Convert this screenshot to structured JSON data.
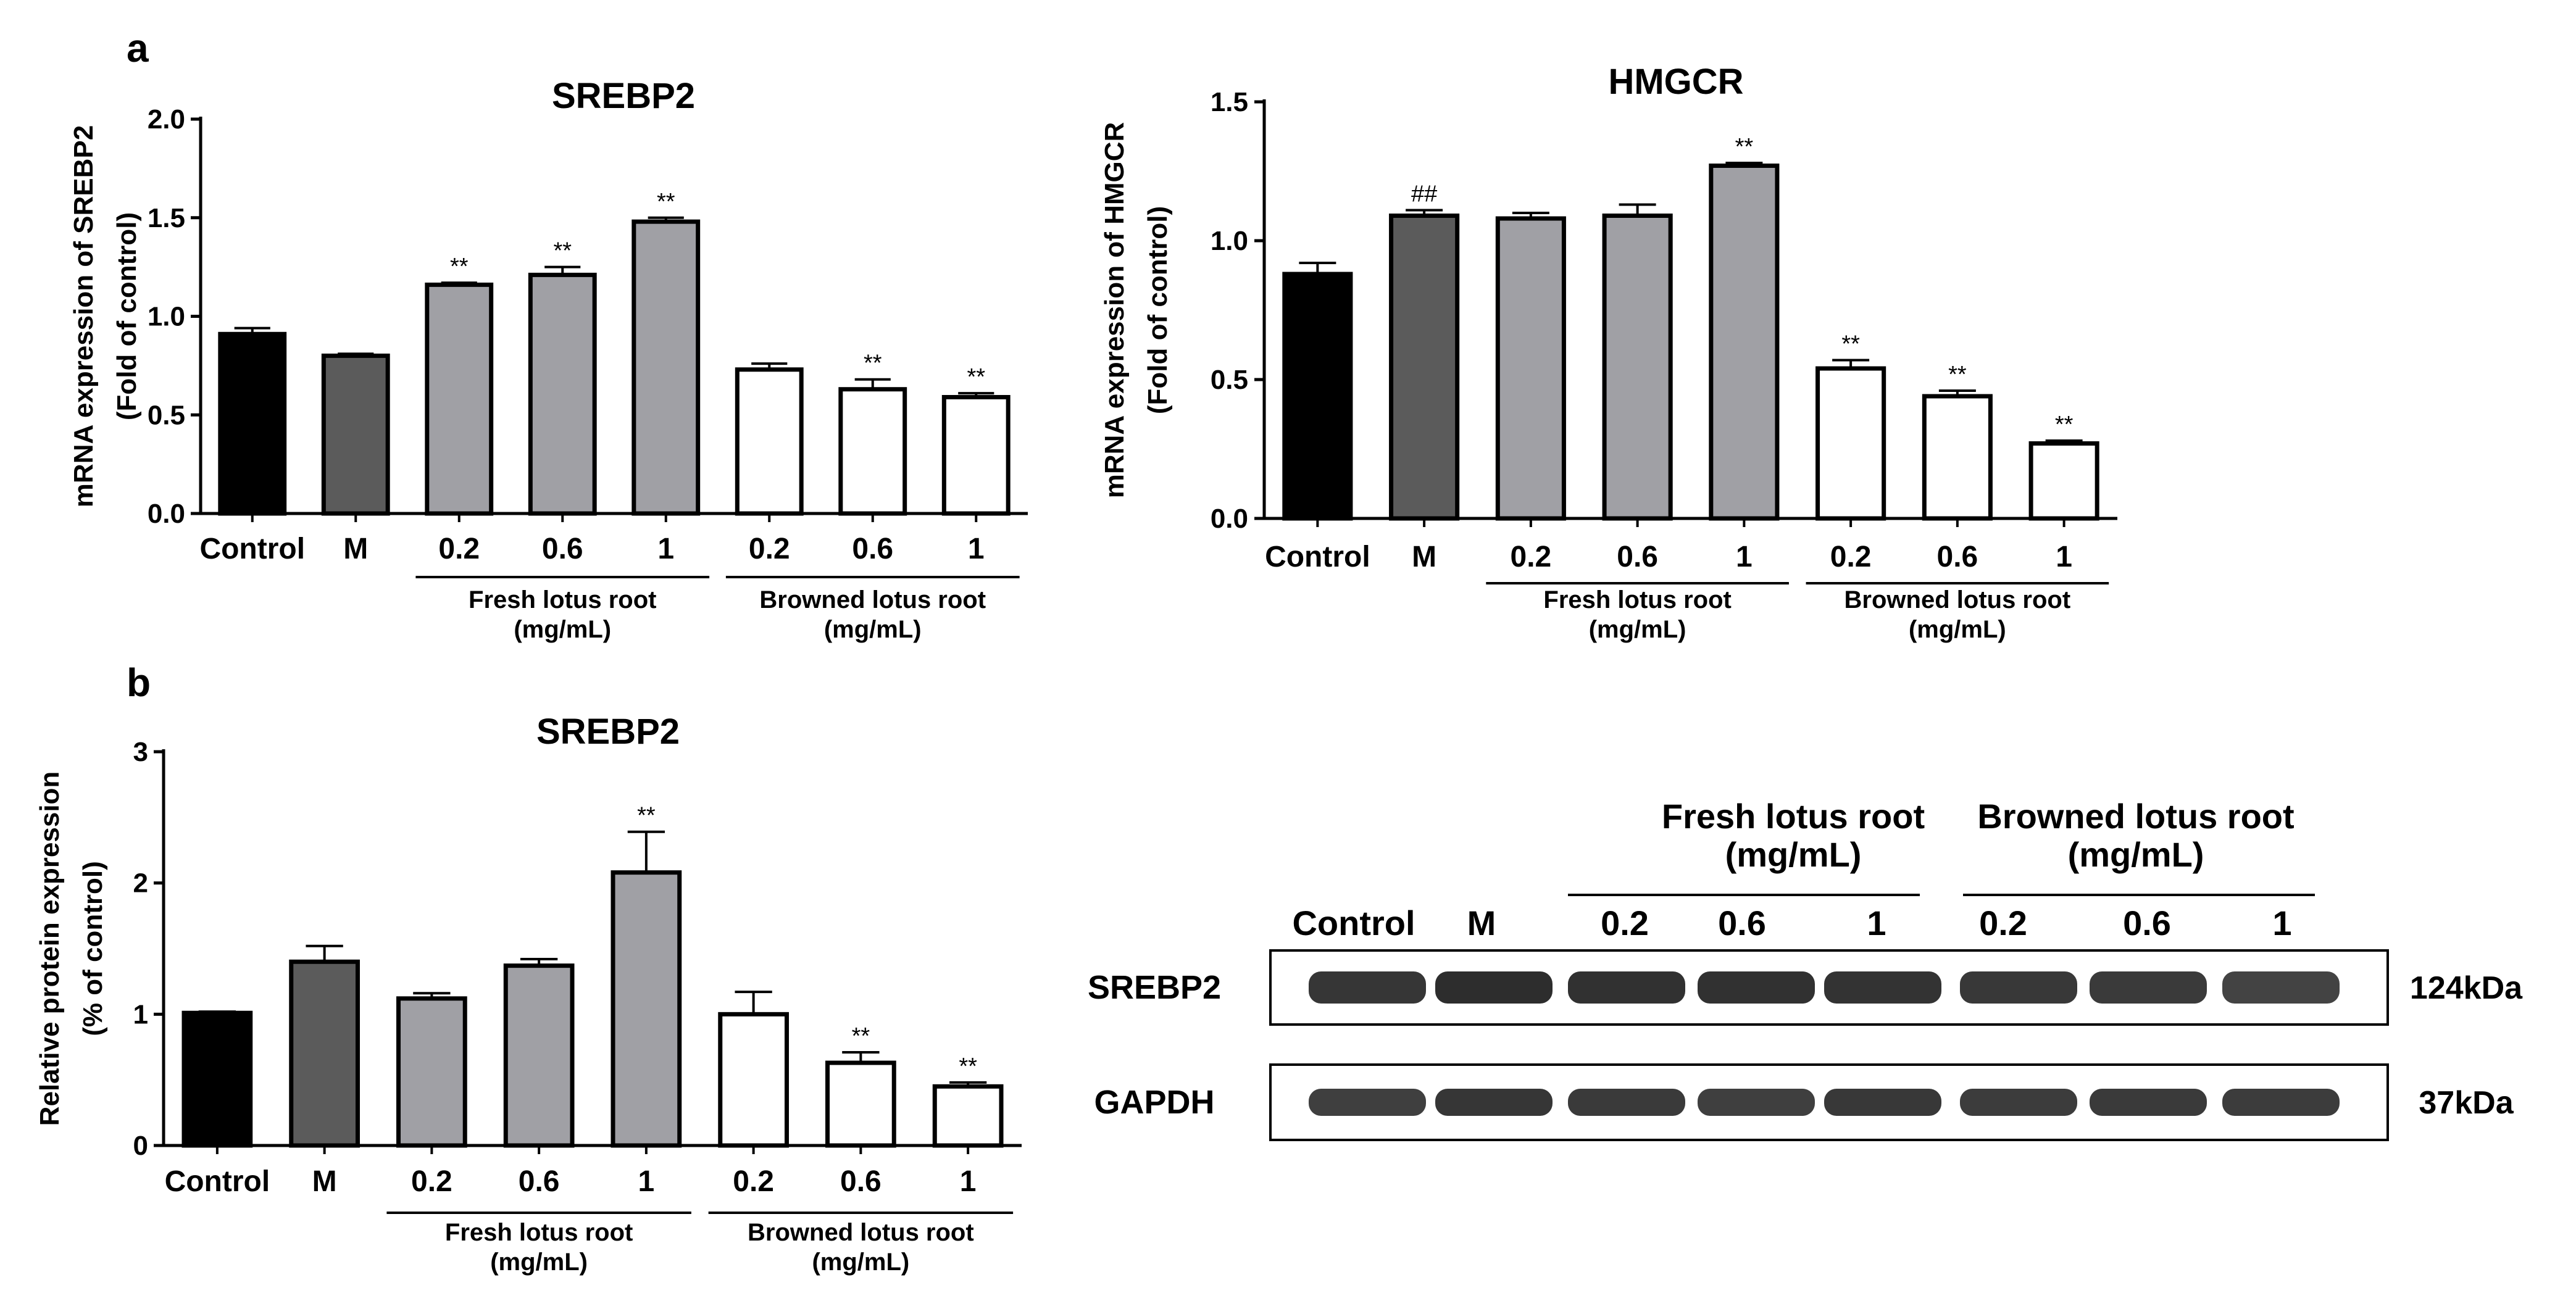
{
  "panel_labels": {
    "a": "a",
    "b": "b"
  },
  "colors": {
    "control": "#000000",
    "model": "#5b5b5b",
    "fresh": "#a0a0a5",
    "browned": "#ffffff",
    "outline": "#000000"
  },
  "chart_data": [
    {
      "id": "srebp2-mrna",
      "type": "bar",
      "title": "SREBP2",
      "ylabel": [
        "mRNA expression of SREBP2",
        "(Fold of control)"
      ],
      "ylim": [
        0,
        2.0
      ],
      "yticks": [
        "0.0",
        "0.5",
        "1.0",
        "1.5",
        "2.0"
      ],
      "ytick_values": [
        0,
        0.5,
        1.0,
        1.5,
        2.0
      ],
      "categories": [
        "Control",
        "M",
        "0.2",
        "0.6",
        "1",
        "0.2",
        "0.6",
        "1"
      ],
      "values": [
        0.91,
        0.8,
        1.16,
        1.21,
        1.48,
        0.73,
        0.63,
        0.59
      ],
      "errors": [
        0.03,
        0.01,
        0.01,
        0.04,
        0.02,
        0.03,
        0.05,
        0.02
      ],
      "annotations": [
        "",
        "",
        "**",
        "**",
        "**",
        "",
        "**",
        "**"
      ],
      "fill_keys": [
        "control",
        "model",
        "fresh",
        "fresh",
        "fresh",
        "browned",
        "browned",
        "browned"
      ],
      "groups": [
        {
          "label": [
            "Fresh lotus root",
            "(mg/mL)"
          ],
          "from": 2,
          "to": 4
        },
        {
          "label": [
            "Browned lotus root",
            "(mg/mL)"
          ],
          "from": 5,
          "to": 7
        }
      ]
    },
    {
      "id": "hmgcr-mrna",
      "type": "bar",
      "title": "HMGCR",
      "ylabel": [
        "mRNA expression of HMGCR",
        "(Fold of control)"
      ],
      "ylim": [
        0,
        1.5
      ],
      "yticks": [
        "0.0",
        "0.5",
        "1.0",
        "1.5"
      ],
      "ytick_values": [
        0,
        0.5,
        1.0,
        1.5
      ],
      "categories": [
        "Control",
        "M",
        "0.2",
        "0.6",
        "1",
        "0.2",
        "0.6",
        "1"
      ],
      "values": [
        0.88,
        1.09,
        1.08,
        1.09,
        1.27,
        0.54,
        0.44,
        0.27
      ],
      "errors": [
        0.04,
        0.02,
        0.02,
        0.04,
        0.01,
        0.03,
        0.02,
        0.01
      ],
      "annotations": [
        "",
        "##",
        "",
        "",
        "**",
        "**",
        "**",
        "**"
      ],
      "fill_keys": [
        "control",
        "model",
        "fresh",
        "fresh",
        "fresh",
        "browned",
        "browned",
        "browned"
      ],
      "groups": [
        {
          "label": [
            "Fresh lotus root",
            "(mg/mL)"
          ],
          "from": 2,
          "to": 4
        },
        {
          "label": [
            "Browned lotus root",
            "(mg/mL)"
          ],
          "from": 5,
          "to": 7
        }
      ]
    },
    {
      "id": "srebp2-protein",
      "type": "bar",
      "title": "SREBP2",
      "ylabel": [
        "Relative protein expression",
        "(% of control)"
      ],
      "ylim": [
        0,
        3
      ],
      "yticks": [
        "0",
        "1",
        "2",
        "3"
      ],
      "ytick_values": [
        0,
        1,
        2,
        3
      ],
      "categories": [
        "Control",
        "M",
        "0.2",
        "0.6",
        "1",
        "0.2",
        "0.6",
        "1"
      ],
      "values": [
        1.01,
        1.4,
        1.12,
        1.37,
        2.08,
        1.0,
        0.63,
        0.45
      ],
      "errors": [
        0.01,
        0.12,
        0.04,
        0.05,
        0.31,
        0.17,
        0.08,
        0.03
      ],
      "annotations": [
        "",
        "",
        "",
        "",
        "**",
        "",
        "**",
        "**"
      ],
      "fill_keys": [
        "control",
        "model",
        "fresh",
        "fresh",
        "fresh",
        "browned",
        "browned",
        "browned"
      ],
      "groups": [
        {
          "label": [
            "Fresh lotus root",
            "(mg/mL)"
          ],
          "from": 2,
          "to": 4
        },
        {
          "label": [
            "Browned lotus root",
            "(mg/mL)"
          ],
          "from": 5,
          "to": 7
        }
      ]
    }
  ],
  "western_blot": {
    "group_headers": [
      {
        "label": [
          "Fresh lotus root",
          "(mg/mL)"
        ]
      },
      {
        "label": [
          "Browned lotus root",
          "(mg/mL)"
        ]
      }
    ],
    "lanes": [
      "Control",
      "M",
      "0.2",
      "0.6",
      "1",
      "0.2",
      "0.6",
      "1"
    ],
    "rows": [
      {
        "protein": "SREBP2",
        "size": "124kDa",
        "intensities": [
          0.85,
          0.95,
          0.9,
          0.9,
          0.88,
          0.82,
          0.8,
          0.7
        ]
      },
      {
        "protein": "GAPDH",
        "size": "37kDa",
        "intensities": [
          0.75,
          0.85,
          0.8,
          0.75,
          0.82,
          0.78,
          0.8,
          0.78
        ]
      }
    ]
  }
}
